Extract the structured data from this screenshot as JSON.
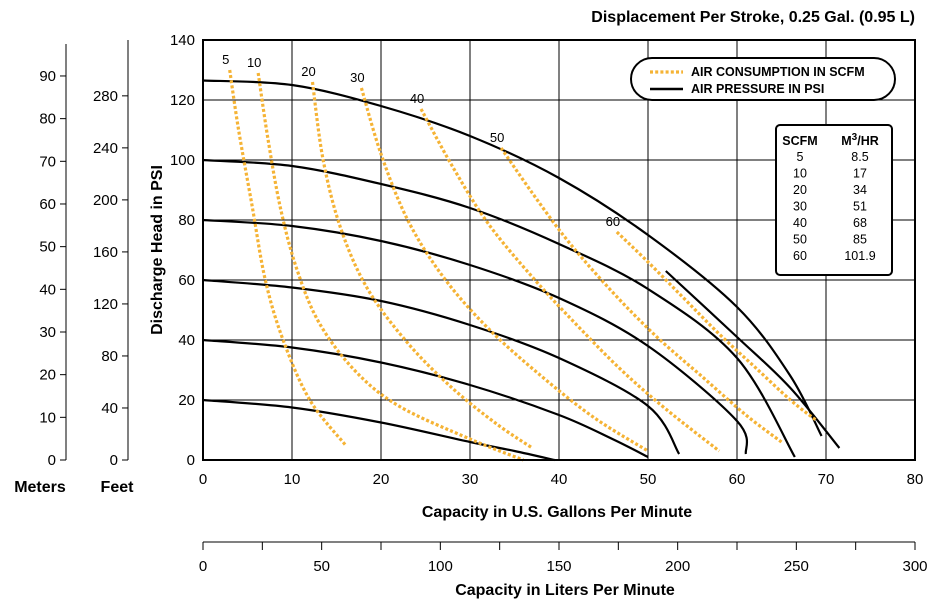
{
  "chart_data": {
    "type": "line",
    "title": "Displacement Per Stroke, 0.25 Gal. (0.95 L)",
    "xlabel": "Capacity in U.S. Gallons Per Minute",
    "ylabel": "Discharge Head in PSI",
    "xlim": [
      0,
      80
    ],
    "ylim": [
      0,
      140
    ],
    "x_ticks": [
      0,
      10,
      20,
      30,
      40,
      50,
      60,
      70,
      80
    ],
    "y_ticks": [
      0,
      20,
      40,
      60,
      80,
      100,
      120,
      140
    ],
    "grid": true,
    "secondary_axes": {
      "meters": {
        "label": "Meters",
        "ticks": [
          0,
          10,
          20,
          30,
          40,
          50,
          60,
          70,
          80,
          90
        ]
      },
      "feet": {
        "label": "Feet",
        "ticks": [
          0,
          40,
          80,
          120,
          160,
          200,
          240,
          280
        ]
      },
      "liters": {
        "label": "Capacity in Liters Per Minute",
        "ticks": [
          0,
          50,
          100,
          150,
          200,
          250,
          300
        ],
        "lim": [
          0,
          300
        ]
      }
    },
    "legend": {
      "position": "top-right",
      "entries": [
        {
          "label": "AIR CONSUMPTION IN SCFM",
          "style": "dotted",
          "color": "#f5b335"
        },
        {
          "label": "AIR PRESSURE IN PSI",
          "style": "solid",
          "color": "#000000"
        }
      ]
    },
    "pressure_curves": [
      {
        "x": [
          0,
          10,
          20,
          30,
          35,
          39.5
        ],
        "y": [
          20,
          17.5,
          12.5,
          6,
          3,
          0
        ]
      },
      {
        "x": [
          0,
          10,
          20,
          30,
          40,
          46,
          50
        ],
        "y": [
          40,
          37.5,
          32.5,
          25,
          15,
          7,
          1
        ]
      },
      {
        "x": [
          0,
          10,
          20,
          30,
          40,
          50,
          53.5
        ],
        "y": [
          60,
          57.5,
          53,
          45,
          34,
          18,
          2
        ]
      },
      {
        "x": [
          0,
          10,
          20,
          30,
          40,
          50,
          60,
          61
        ],
        "y": [
          80,
          78,
          73,
          65,
          54,
          38,
          13,
          2
        ]
      },
      {
        "x": [
          0,
          10,
          20,
          30,
          40,
          50,
          60,
          66.5
        ],
        "y": [
          100,
          98,
          92,
          84,
          72,
          57,
          34,
          1
        ]
      },
      {
        "x": [
          0,
          10,
          20,
          30,
          40,
          50,
          60,
          66,
          69.5
        ],
        "y": [
          126.5,
          125,
          118,
          108,
          94,
          75,
          51,
          28,
          8
        ]
      },
      {
        "x": [
          52,
          60,
          66,
          71.5
        ],
        "y": [
          63,
          41,
          24,
          4
        ]
      }
    ],
    "air_curves": [
      {
        "label": "5",
        "x": [
          3,
          4,
          5.5,
          7,
          9,
          12,
          16
        ],
        "y": [
          130,
          110,
          85,
          60,
          40,
          20,
          5
        ]
      },
      {
        "label": "10",
        "x": [
          6.2,
          7.3,
          8.7,
          10.5,
          13,
          17,
          22,
          30,
          36
        ],
        "y": [
          129,
          107,
          84,
          64,
          46,
          30,
          18,
          7,
          0
        ]
      },
      {
        "label": "20",
        "x": [
          12.3,
          13.5,
          15.5,
          18.5,
          23,
          28,
          33,
          37
        ],
        "y": [
          126,
          100,
          77,
          57,
          39,
          24,
          12,
          4
        ]
      },
      {
        "label": "30",
        "x": [
          17.8,
          20,
          23,
          27,
          32,
          38,
          44,
          50
        ],
        "y": [
          124,
          102,
          80,
          61,
          44,
          28,
          14,
          3
        ]
      },
      {
        "label": "40",
        "x": [
          24.5,
          28,
          32,
          37,
          42,
          47,
          52,
          58
        ],
        "y": [
          117,
          98,
          79,
          61,
          45,
          30,
          17,
          3
        ]
      },
      {
        "label": "50",
        "x": [
          33.5,
          37,
          41,
          46,
          51,
          56,
          61,
          65
        ],
        "y": [
          104,
          89,
          73,
          56,
          41,
          28,
          15,
          6
        ]
      },
      {
        "label": "60",
        "x": [
          46.5,
          50,
          54,
          58,
          62,
          66,
          69
        ],
        "y": [
          76,
          66,
          54,
          42,
          31,
          20,
          13
        ]
      }
    ],
    "scfm_table": {
      "headers": [
        "SCFM",
        "M3/HR"
      ],
      "rows": [
        [
          "5",
          "8.5"
        ],
        [
          "10",
          "17"
        ],
        [
          "20",
          "34"
        ],
        [
          "30",
          "51"
        ],
        [
          "40",
          "68"
        ],
        [
          "50",
          "85"
        ],
        [
          "60",
          "101.9"
        ]
      ]
    },
    "colors": {
      "air": "#f5b335",
      "pressure": "#000000"
    }
  }
}
